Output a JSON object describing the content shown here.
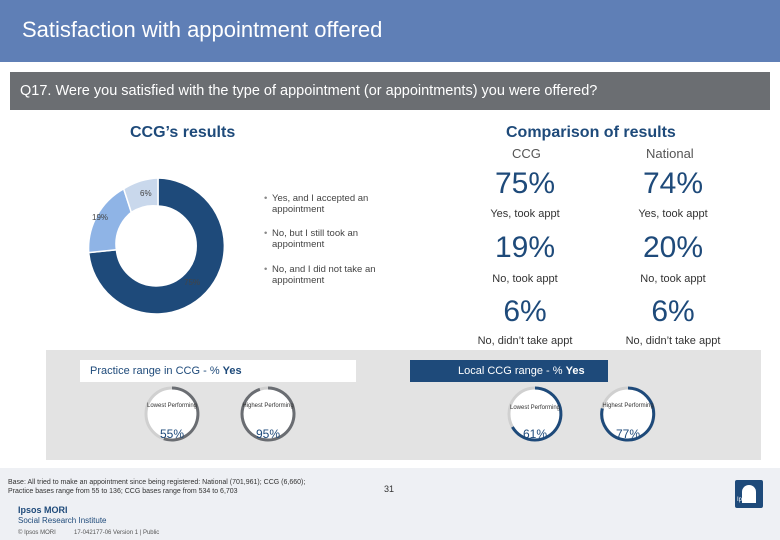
{
  "header": {
    "title": "Satisfaction with appointment offered"
  },
  "question": {
    "text": "Q17. Were you satisfied with the type of appointment (or appointments) you were offered?"
  },
  "ccg_results": {
    "title": "CCG’s results",
    "pie_labels": {
      "no_no": "6%",
      "no_yes": "19%",
      "yes": "75%"
    },
    "legend": [
      "Yes, and I accepted an appointment",
      "No, but I still took an appointment",
      "No, and I did not take an appointment"
    ],
    "colors": {
      "yes": "#1e4a7a",
      "no_yes": "#8fb4e6",
      "no_no": "#c9d8ec"
    }
  },
  "comparison": {
    "title": "Comparison of results",
    "col_ccg": "CCG",
    "col_national": "National",
    "rows": [
      {
        "ccg": "75%",
        "national": "74%",
        "label": "Yes, took appt"
      },
      {
        "ccg": "19%",
        "national": "20%",
        "label": "No, took appt"
      },
      {
        "ccg": "6%",
        "national": "6%",
        "label": "No, didn’t take appt"
      }
    ]
  },
  "practice_range": {
    "label": "Practice range in CCG - % ",
    "label_bold": "Yes",
    "lowest_label": "Lowest Performing",
    "highest_label": "Highest Performing",
    "lowest_value": "55%",
    "highest_value": "95%"
  },
  "local_range": {
    "label": "Local CCG range - % ",
    "label_bold": "Yes",
    "lowest_label": "Lowest Performing",
    "highest_label": "Highest Performing",
    "lowest_value": "61%",
    "highest_value": "77%"
  },
  "footer": {
    "base_line1": "Base: All tried to make an appointment since being registered: National (701,961); CCG (6,660);",
    "base_line2": "Practice bases range from 55 to 136; CCG bases range from 534 to 6,703",
    "page_number": "31",
    "brand_line1": "Ipsos MORI",
    "brand_line2": "Social Research Institute",
    "copyright": "© Ipsos MORI",
    "version": "17-042177-06 Version 1 | Public",
    "logo_text": "Ipsos"
  }
}
